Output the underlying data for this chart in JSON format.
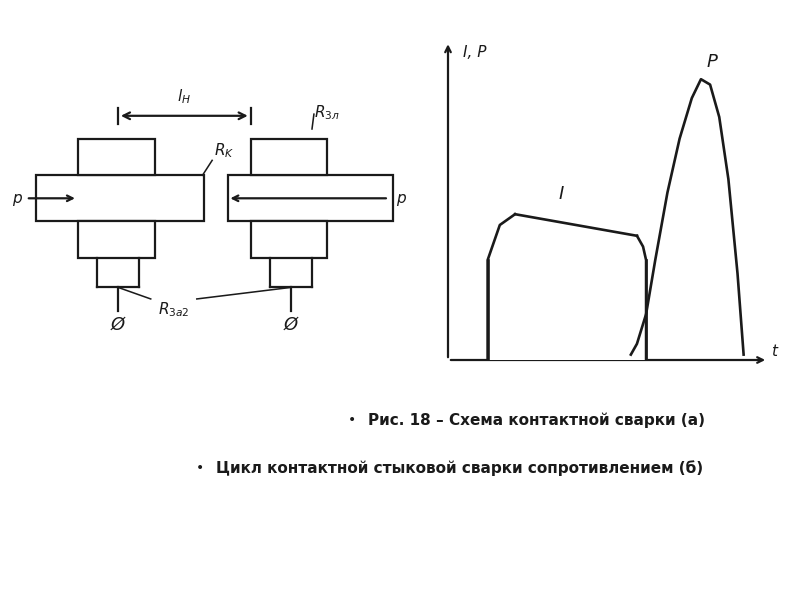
{
  "bg_color": "#ffffff",
  "line_color": "#1a1a1a",
  "text_color": "#1a1a1a",
  "caption1": "Рис. 18 – Схема контактной сварки (а)",
  "caption2": "Цикл контактной стыковой сварки сопротивлением (б)",
  "label_lh": "$l_H$",
  "label_rk": "$R_K$",
  "label_rel": "$R_{3л}$",
  "label_rzag": "$R_{3a2}$",
  "label_p": "p",
  "label_I": "I",
  "label_P": "P",
  "label_IP": "I, P",
  "label_t": "t",
  "ground_symbol": "Ø"
}
